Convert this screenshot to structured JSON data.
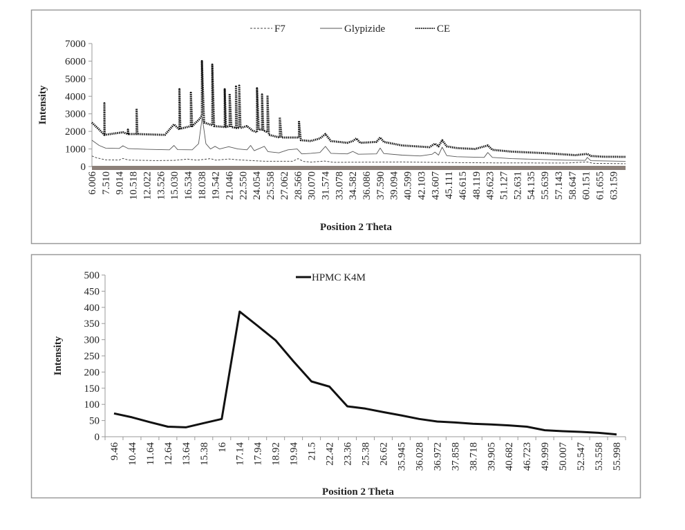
{
  "chart_data": [
    {
      "type": "line",
      "xlabel": "Position 2 Theta",
      "ylabel": "Intensity",
      "ylim": [
        0,
        7000
      ],
      "yticks": [
        "0",
        "1000",
        "2000",
        "3000",
        "4000",
        "5000",
        "6000",
        "7000"
      ],
      "xlim": [
        6.006,
        64.5
      ],
      "xtick_labels": [
        "6.006",
        "7.510",
        "9.014",
        "10.518",
        "12.022",
        "13.526",
        "15.030",
        "16.534",
        "18.038",
        "19.542",
        "21.046",
        "22.550",
        "24.054",
        "25.558",
        "27.062",
        "28.566",
        "30.070",
        "31.574",
        "33.078",
        "34.582",
        "36.086",
        "37.590",
        "39.094",
        "40.599",
        "42.103",
        "43.607",
        "45.111",
        "46.615",
        "48.119",
        "49.623",
        "51.127",
        "52.631",
        "54.135",
        "55.639",
        "57.143",
        "58.647",
        "60.151",
        "61.655",
        "63.159"
      ],
      "legend_position": "top",
      "grid": false,
      "series": [
        {
          "name": "F7",
          "style": "dashed",
          "color": "#444444",
          "points": [
            [
              6.0,
              600
            ],
            [
              6.5,
              500
            ],
            [
              7.5,
              380
            ],
            [
              9.0,
              370
            ],
            [
              9.4,
              460
            ],
            [
              10,
              370
            ],
            [
              13,
              340
            ],
            [
              15,
              350
            ],
            [
              16.5,
              420
            ],
            [
              17.5,
              360
            ],
            [
              19,
              450
            ],
            [
              19.6,
              360
            ],
            [
              21,
              430
            ],
            [
              22,
              380
            ],
            [
              25,
              300
            ],
            [
              28,
              300
            ],
            [
              28.6,
              450
            ],
            [
              29.2,
              290
            ],
            [
              30,
              250
            ],
            [
              31.5,
              310
            ],
            [
              32.5,
              240
            ],
            [
              40,
              260
            ],
            [
              45,
              230
            ],
            [
              50,
              210
            ],
            [
              58,
              200
            ],
            [
              60.3,
              260
            ],
            [
              61,
              180
            ],
            [
              64.5,
              160
            ]
          ]
        },
        {
          "name": "Glypizide",
          "style": "solid-thin",
          "color": "#555555",
          "points": [
            [
              6.0,
              1500
            ],
            [
              6.8,
              1200
            ],
            [
              7.5,
              1050
            ],
            [
              9.0,
              1030
            ],
            [
              9.4,
              1180
            ],
            [
              10,
              1020
            ],
            [
              12,
              980
            ],
            [
              14.5,
              950
            ],
            [
              15.0,
              1200
            ],
            [
              15.4,
              960
            ],
            [
              17,
              950
            ],
            [
              17.7,
              1300
            ],
            [
              18.1,
              2800
            ],
            [
              18.5,
              1300
            ],
            [
              19,
              1000
            ],
            [
              19.5,
              1150
            ],
            [
              20,
              1000
            ],
            [
              21,
              1130
            ],
            [
              22,
              1000
            ],
            [
              23,
              950
            ],
            [
              23.4,
              1200
            ],
            [
              23.8,
              900
            ],
            [
              24.9,
              1150
            ],
            [
              25.3,
              850
            ],
            [
              26.5,
              780
            ],
            [
              27.5,
              950
            ],
            [
              28.5,
              1000
            ],
            [
              29,
              720
            ],
            [
              30,
              750
            ],
            [
              31,
              800
            ],
            [
              31.6,
              1150
            ],
            [
              32.2,
              750
            ],
            [
              34,
              720
            ],
            [
              34.6,
              860
            ],
            [
              35.2,
              700
            ],
            [
              37.2,
              720
            ],
            [
              37.6,
              1050
            ],
            [
              38,
              740
            ],
            [
              40,
              650
            ],
            [
              42,
              600
            ],
            [
              43.3,
              700
            ],
            [
              43.6,
              820
            ],
            [
              44,
              650
            ],
            [
              44.4,
              1100
            ],
            [
              44.9,
              620
            ],
            [
              46,
              560
            ],
            [
              49,
              520
            ],
            [
              49.4,
              800
            ],
            [
              49.9,
              520
            ],
            [
              52,
              450
            ],
            [
              58,
              360
            ],
            [
              60.1,
              350
            ],
            [
              60.3,
              520
            ],
            [
              60.7,
              330
            ],
            [
              64.5,
              300
            ]
          ]
        },
        {
          "name": "CE",
          "style": "dotted-thick",
          "color": "#111111",
          "points": [
            [
              6.0,
              2500
            ],
            [
              6.8,
              2100
            ],
            [
              7.37,
              1800
            ],
            [
              7.37,
              3600
            ],
            [
              7.4,
              1800
            ],
            [
              9.4,
              1950
            ],
            [
              9.95,
              1850
            ],
            [
              9.95,
              2100
            ],
            [
              10,
              1850
            ],
            [
              10.9,
              1850
            ],
            [
              10.9,
              3300
            ],
            [
              11,
              1850
            ],
            [
              14,
              1800
            ],
            [
              15,
              2400
            ],
            [
              15.6,
              2100
            ],
            [
              15.6,
              4400
            ],
            [
              15.7,
              2150
            ],
            [
              16.85,
              2300
            ],
            [
              16.85,
              4200
            ],
            [
              17,
              2300
            ],
            [
              17.8,
              2700
            ],
            [
              18.06,
              2900
            ],
            [
              18.06,
              6000
            ],
            [
              18.3,
              2500
            ],
            [
              19.2,
              2350
            ],
            [
              19.2,
              5800
            ],
            [
              19.4,
              2300
            ],
            [
              20.56,
              2250
            ],
            [
              20.56,
              4400
            ],
            [
              20.7,
              2250
            ],
            [
              21.1,
              2300
            ],
            [
              21.1,
              4150
            ],
            [
              21.3,
              2250
            ],
            [
              21.8,
              2200
            ],
            [
              21.8,
              4550
            ],
            [
              21.9,
              2200
            ],
            [
              22.15,
              2200
            ],
            [
              22.15,
              4600
            ],
            [
              22.3,
              2200
            ],
            [
              23,
              2300
            ],
            [
              23.6,
              2050
            ],
            [
              24.1,
              1950
            ],
            [
              24.1,
              4450
            ],
            [
              24.3,
              2100
            ],
            [
              24.65,
              2100
            ],
            [
              24.65,
              4100
            ],
            [
              24.8,
              2050
            ],
            [
              25.25,
              1950
            ],
            [
              25.25,
              4050
            ],
            [
              25.4,
              1800
            ],
            [
              26.6,
              1650
            ],
            [
              26.6,
              2800
            ],
            [
              26.8,
              1650
            ],
            [
              28.7,
              1650
            ],
            [
              28.7,
              2600
            ],
            [
              28.9,
              1500
            ],
            [
              30,
              1450
            ],
            [
              31,
              1600
            ],
            [
              31.6,
              1850
            ],
            [
              32.2,
              1450
            ],
            [
              34,
              1350
            ],
            [
              34.6,
              1450
            ],
            [
              35,
              1600
            ],
            [
              35.4,
              1350
            ],
            [
              37.2,
              1400
            ],
            [
              37.6,
              1650
            ],
            [
              38,
              1400
            ],
            [
              40,
              1200
            ],
            [
              43,
              1100
            ],
            [
              43.6,
              1300
            ],
            [
              44,
              1150
            ],
            [
              44.4,
              1500
            ],
            [
              44.9,
              1150
            ],
            [
              46,
              1050
            ],
            [
              48,
              1000
            ],
            [
              49.4,
              1200
            ],
            [
              49.9,
              950
            ],
            [
              52,
              850
            ],
            [
              56,
              750
            ],
            [
              59,
              650
            ],
            [
              60.3,
              720
            ],
            [
              60.7,
              600
            ],
            [
              62,
              560
            ],
            [
              64.5,
              550
            ]
          ]
        }
      ]
    },
    {
      "type": "line",
      "xlabel": "Position 2 Theta",
      "ylabel": "Intensity",
      "ylim": [
        0,
        500
      ],
      "yticks": [
        "0",
        "50",
        "100",
        "150",
        "200",
        "250",
        "300",
        "350",
        "400",
        "450",
        "500"
      ],
      "legend_position": "top",
      "grid": false,
      "categories": [
        "9.46",
        "10.44",
        "11.64",
        "12.64",
        "13.64",
        "15.38",
        "16",
        "17.14",
        "17.94",
        "18.92",
        "19.94",
        "21.5",
        "22.42",
        "23.36",
        "25.38",
        "26.62",
        "35.945",
        "36.028",
        "36.972",
        "37.858",
        "38.718",
        "39.905",
        "40.682",
        "46.723",
        "49.999",
        "50.007",
        "52.547",
        "53.558",
        "55.998"
      ],
      "series": [
        {
          "name": "HPMC K4M",
          "color": "#111111",
          "values": [
            72,
            60,
            45,
            31,
            29,
            42,
            55,
            387,
            343,
            298,
            233,
            171,
            155,
            94,
            87,
            76,
            66,
            55,
            47,
            44,
            40,
            38,
            35,
            31,
            20,
            17,
            15,
            12,
            7
          ]
        }
      ]
    }
  ]
}
